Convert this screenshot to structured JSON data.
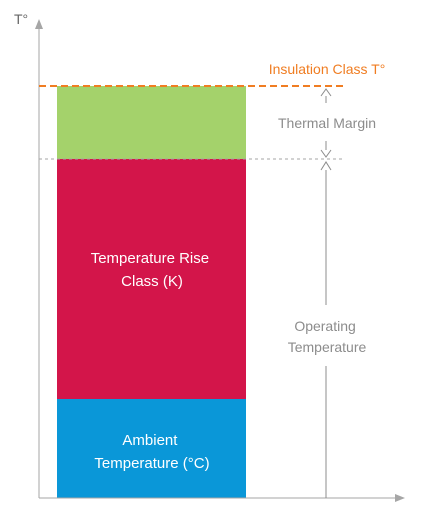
{
  "axis": {
    "y_label": "T°"
  },
  "blocks": {
    "ambient": {
      "label_lines": [
        "Ambient",
        "Temperature (°C)"
      ],
      "color": "#0A97D8"
    },
    "rise": {
      "label_lines": [
        "Temperature Rise",
        "Class (K)"
      ],
      "color": "#D3154A"
    },
    "margin": {
      "color": "#A4D26B"
    }
  },
  "annotations": {
    "insulation_class": {
      "text": "Insulation Class T°",
      "color": "#F07D22"
    },
    "thermal_margin": {
      "text": "Thermal Margin",
      "color": "#8C8C8C"
    },
    "operating_temperature": {
      "label_lines": [
        "Operating",
        "Temperature"
      ],
      "color": "#8C8C8C"
    }
  },
  "colors": {
    "axis": "#A6A6A6",
    "operating_limit_line": "#A6A6A6"
  }
}
